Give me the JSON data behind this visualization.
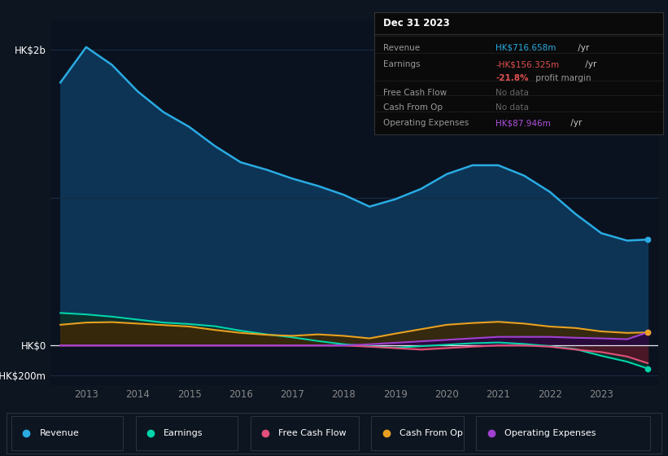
{
  "bg_color": "#0d1520",
  "plot_bg_color": "#0a1220",
  "grid_color": "#1a2a40",
  "years": [
    2012.5,
    2013.0,
    2013.5,
    2014.0,
    2014.5,
    2015.0,
    2015.5,
    2016.0,
    2016.5,
    2017.0,
    2017.5,
    2018.0,
    2018.5,
    2019.0,
    2019.5,
    2020.0,
    2020.5,
    2021.0,
    2021.5,
    2022.0,
    2022.5,
    2023.0,
    2023.5,
    2023.9
  ],
  "revenue": [
    1780,
    2020,
    1900,
    1720,
    1580,
    1480,
    1350,
    1240,
    1190,
    1130,
    1080,
    1020,
    940,
    990,
    1060,
    1160,
    1220,
    1220,
    1150,
    1040,
    890,
    760,
    710,
    717
  ],
  "earnings": [
    220,
    210,
    195,
    175,
    155,
    145,
    130,
    100,
    75,
    55,
    30,
    8,
    -5,
    -15,
    -5,
    5,
    15,
    20,
    10,
    -5,
    -25,
    -70,
    -110,
    -156
  ],
  "free_cash_flow": [
    0,
    0,
    0,
    0,
    0,
    0,
    0,
    0,
    0,
    0,
    0,
    0,
    -8,
    -18,
    -28,
    -18,
    -8,
    0,
    0,
    -8,
    -28,
    -45,
    -75,
    -120
  ],
  "cash_from_op": [
    140,
    155,
    158,
    148,
    138,
    128,
    105,
    85,
    72,
    65,
    75,
    65,
    48,
    80,
    110,
    140,
    152,
    160,
    148,
    128,
    118,
    95,
    85,
    88
  ],
  "operating_exp": [
    0,
    0,
    0,
    0,
    0,
    0,
    0,
    0,
    0,
    0,
    0,
    0,
    8,
    18,
    28,
    38,
    48,
    58,
    58,
    58,
    52,
    48,
    42,
    88
  ],
  "revenue_color": "#29abe2",
  "revenue_fill": "#0d3455",
  "earnings_color": "#00d4aa",
  "earnings_fill": "#0d3028",
  "free_cash_flow_color": "#e0507a",
  "free_cash_flow_fill": "#501525",
  "cash_from_op_color": "#e8a020",
  "cash_from_op_fill": "#3a2808",
  "operating_exp_color": "#a040d0",
  "operating_exp_fill": "#280840",
  "ylim_min": -270,
  "ylim_max": 2200,
  "ytick_values": [
    2000,
    1000,
    0,
    -200
  ],
  "ytick_labels": [
    "HK$2b",
    "",
    "HK$0",
    "-HK$200m"
  ],
  "xtick_values": [
    2013,
    2014,
    2015,
    2016,
    2017,
    2018,
    2019,
    2020,
    2021,
    2022,
    2023
  ],
  "tooltip_title": "Dec 31 2023",
  "legend_items": [
    {
      "label": "Revenue",
      "color": "#29abe2"
    },
    {
      "label": "Earnings",
      "color": "#00d4aa"
    },
    {
      "label": "Free Cash Flow",
      "color": "#e0507a"
    },
    {
      "label": "Cash From Op",
      "color": "#e8a020"
    },
    {
      "label": "Operating Expenses",
      "color": "#a040d0"
    }
  ]
}
